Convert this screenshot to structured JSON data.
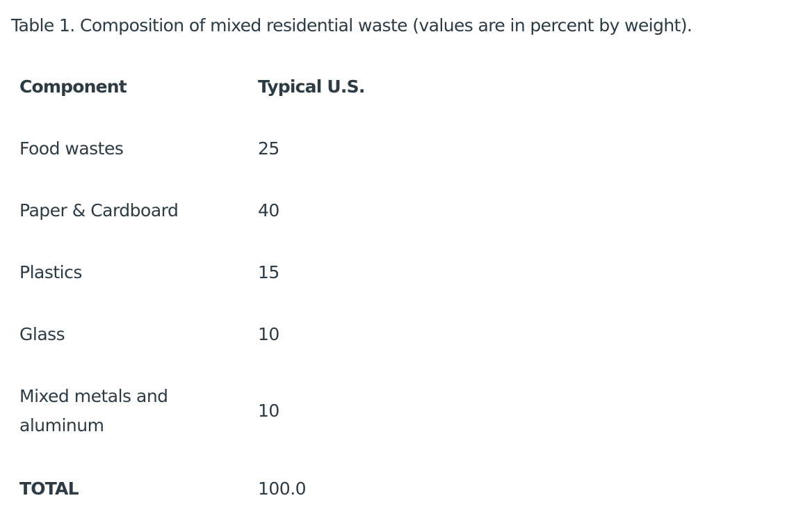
{
  "caption": "Table 1. Composition of mixed residential waste (values are in percent by weight).",
  "table": {
    "headers": [
      "Component",
      "Typical U.S."
    ],
    "rows": [
      {
        "component": "Food wastes",
        "value": "25"
      },
      {
        "component": "Paper & Cardboard",
        "value": "40"
      },
      {
        "component": "Plastics",
        "value": "15"
      },
      {
        "component": "Glass",
        "value": "10"
      },
      {
        "component": "Mixed metals and aluminum",
        "value": "10"
      }
    ],
    "total": {
      "label": "TOTAL",
      "value": "100.0"
    }
  }
}
